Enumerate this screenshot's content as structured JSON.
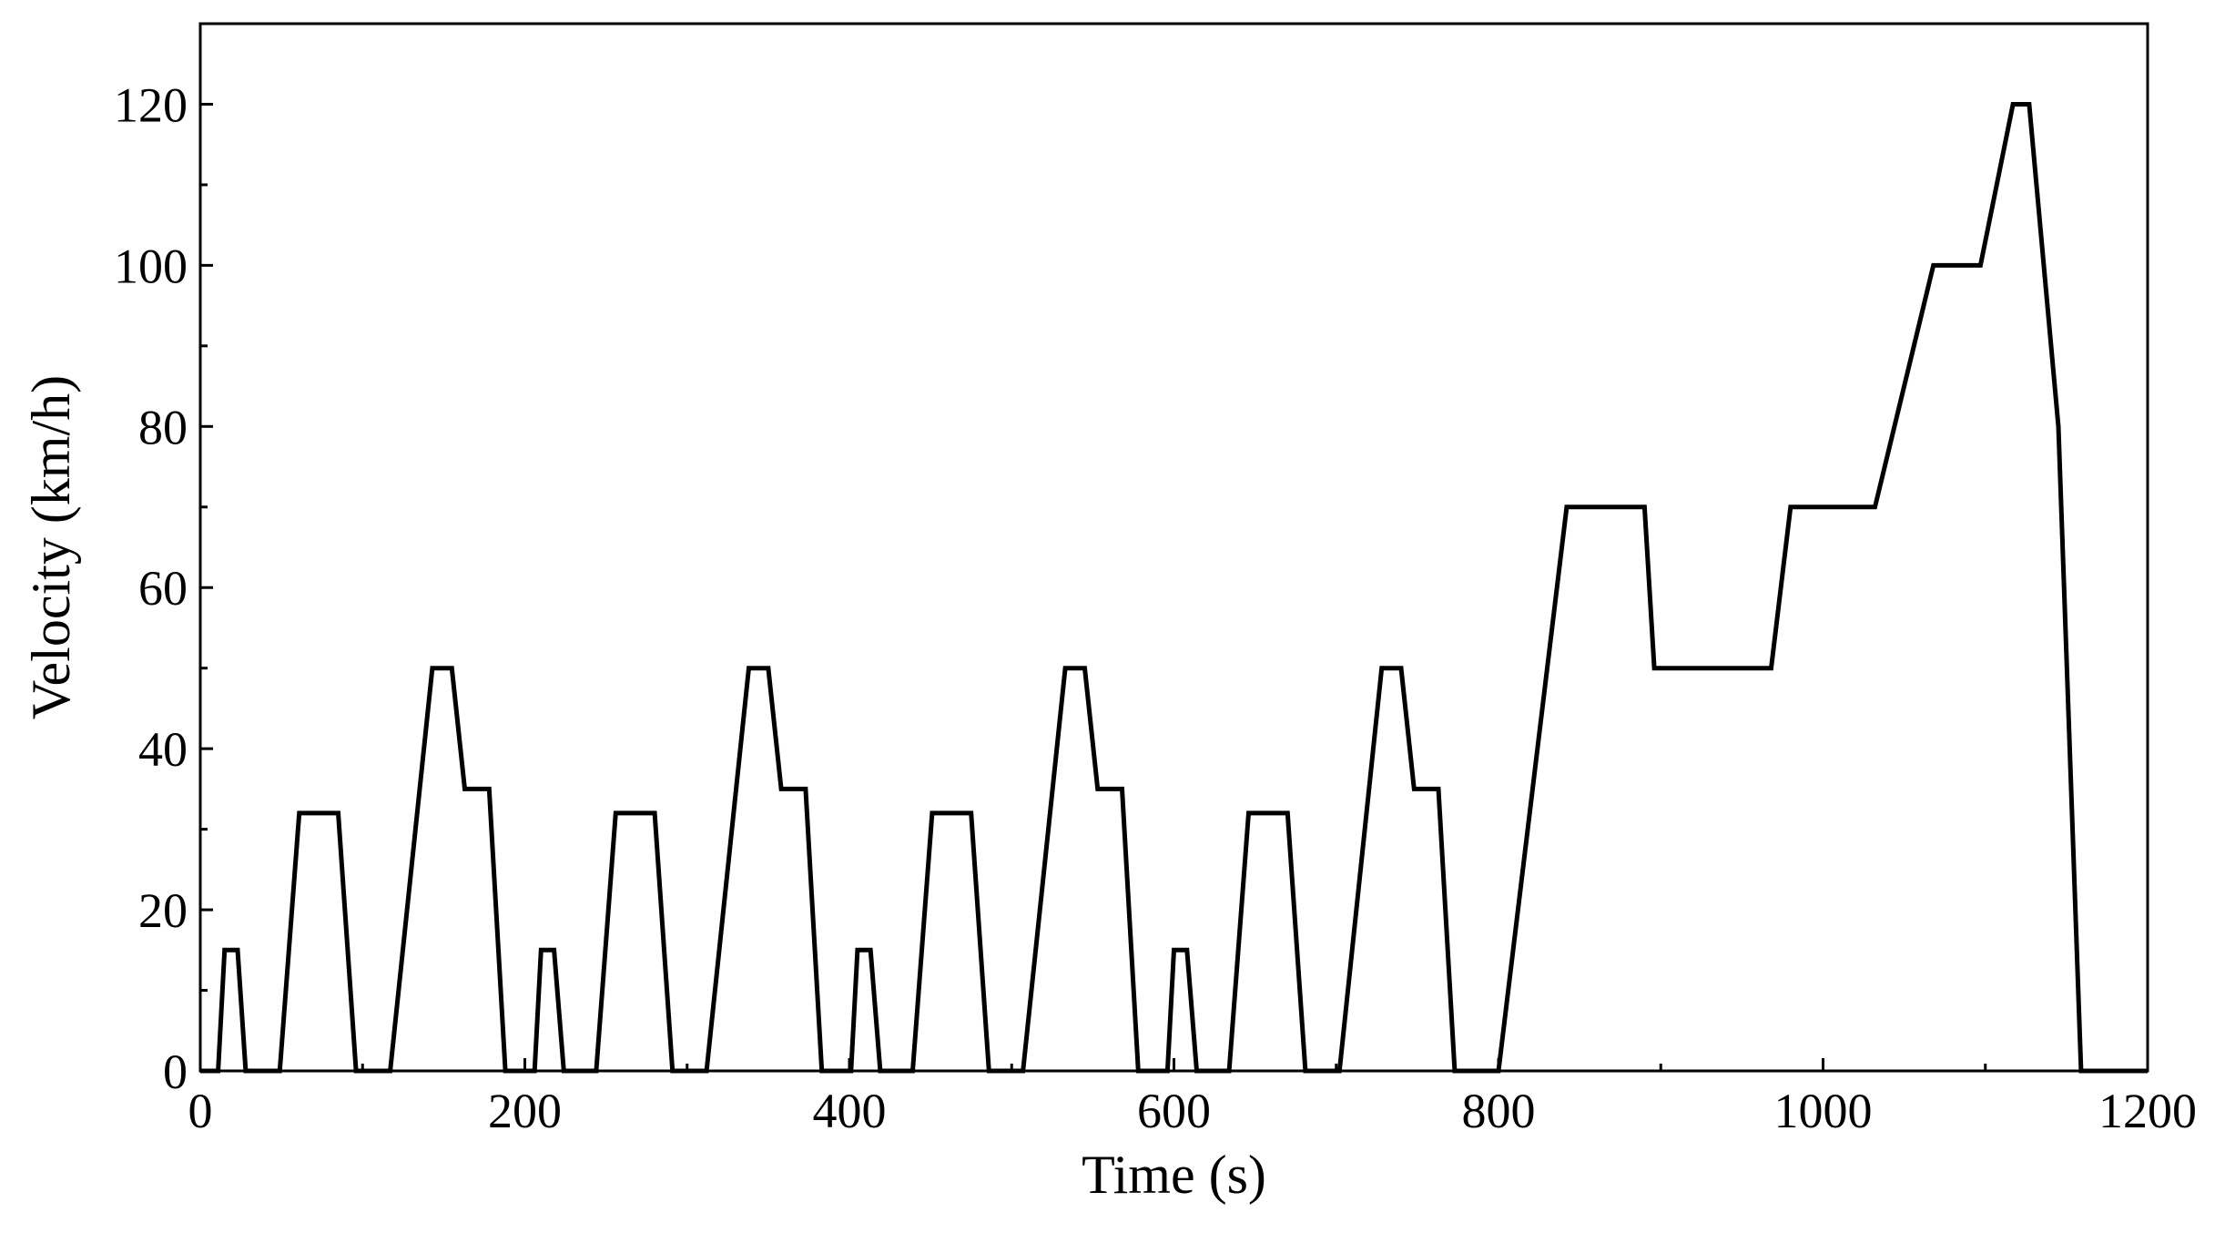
{
  "chart_data": {
    "type": "line",
    "title": "",
    "xlabel": "Time (s)",
    "ylabel": "Velocity (km/h)",
    "xlim": [
      0,
      1200
    ],
    "ylim": [
      0,
      130
    ],
    "xticks": [
      0,
      200,
      400,
      600,
      800,
      1000,
      1200
    ],
    "yticks": [
      0,
      20,
      40,
      60,
      80,
      100,
      120
    ],
    "xticks_minor": [
      100,
      300,
      500,
      700,
      900,
      1100
    ],
    "yticks_minor": [
      10,
      30,
      50,
      70,
      90,
      110
    ],
    "grid": false,
    "line_color": "#000000",
    "series": [
      {
        "x": [
          0,
          11,
          15,
          23,
          28,
          49,
          61,
          85,
          96,
          117,
          143,
          155,
          163,
          178,
          188,
          206,
          210,
          218,
          224,
          244,
          256,
          280,
          291,
          312,
          338,
          350,
          358,
          373,
          383,
          401,
          405,
          413,
          419,
          439,
          451,
          475,
          486,
          507,
          533,
          545,
          553,
          568,
          578,
          596,
          600,
          608,
          614,
          634,
          646,
          670,
          681,
          702,
          728,
          740,
          748,
          763,
          773,
          800,
          842,
          890,
          896,
          968,
          980,
          1032,
          1068,
          1097,
          1117,
          1127,
          1145,
          1159,
          1200
        ],
        "y": [
          0,
          0,
          15,
          15,
          0,
          0,
          32,
          32,
          0,
          0,
          50,
          50,
          35,
          35,
          0,
          0,
          15,
          15,
          0,
          0,
          32,
          32,
          0,
          0,
          50,
          50,
          35,
          35,
          0,
          0,
          15,
          15,
          0,
          0,
          32,
          32,
          0,
          0,
          50,
          50,
          35,
          35,
          0,
          0,
          15,
          15,
          0,
          0,
          32,
          32,
          0,
          0,
          50,
          50,
          35,
          35,
          0,
          0,
          70,
          70,
          50,
          50,
          70,
          70,
          100,
          100,
          120,
          120,
          80,
          0,
          0
        ]
      }
    ]
  }
}
